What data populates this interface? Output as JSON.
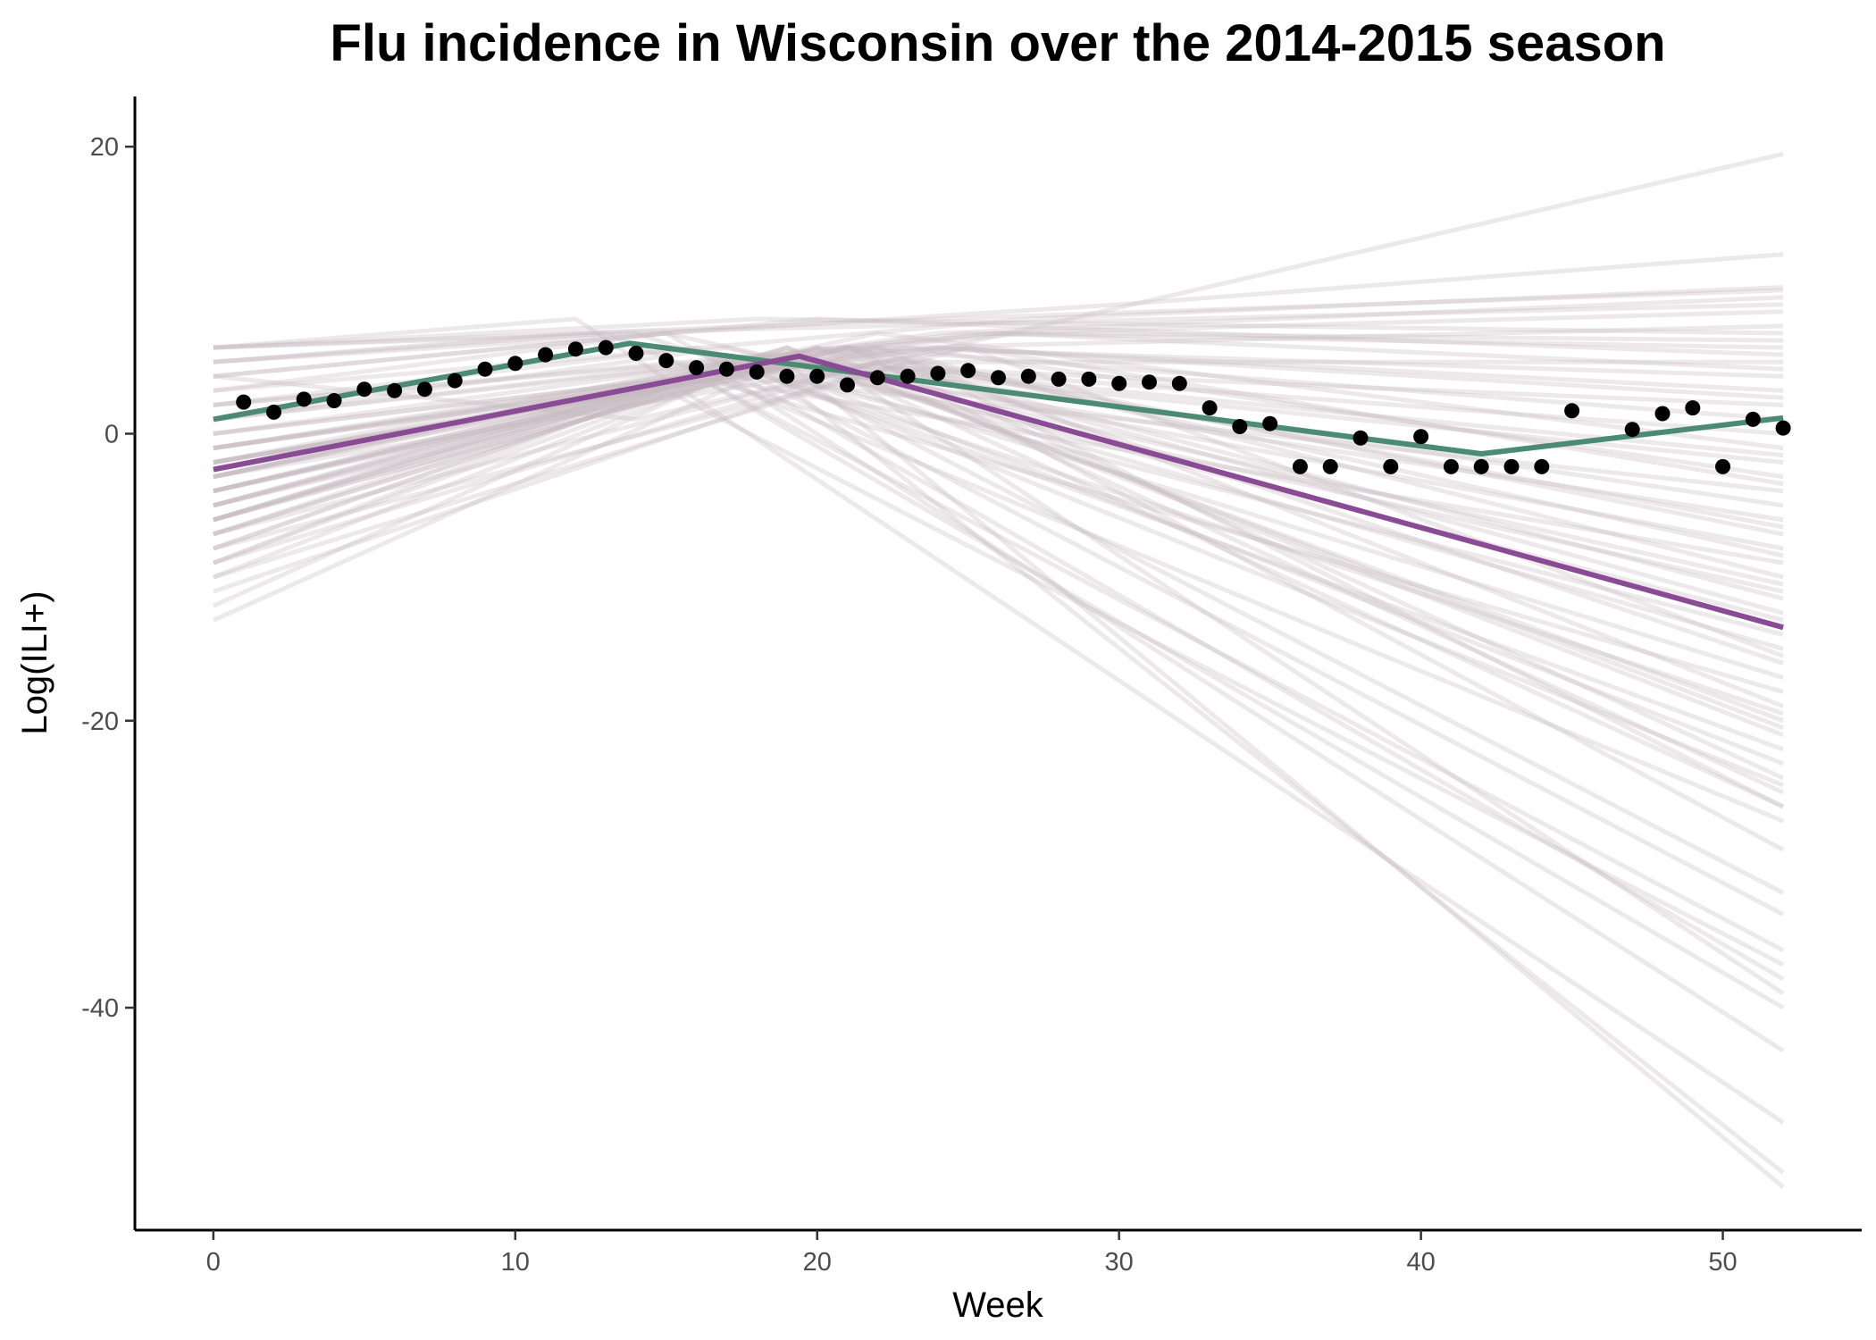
{
  "chart_data": {
    "type": "line",
    "title": "Flu incidence in Wisconsin over the 2014-2015 season",
    "xlabel": "Week",
    "ylabel": "Log(ILI+)",
    "xlim": [
      -2.6,
      54.6
    ],
    "ylim": [
      -55.5,
      23.5
    ],
    "x_ticks": [
      0,
      10,
      20,
      30,
      40,
      50
    ],
    "y_ticks": [
      -40,
      -20,
      0,
      20
    ],
    "grid": false,
    "legend": "none",
    "colors": {
      "observed": "#000000",
      "fit_green": "#4b8b74",
      "fit_purple": "#8a4b95",
      "draws": "#c8bcc0"
    },
    "observed_points": {
      "x": [
        1,
        2,
        3,
        4,
        5,
        6,
        7,
        8,
        9,
        10,
        11,
        12,
        13,
        14,
        15,
        16,
        17,
        18,
        19,
        20,
        21,
        22,
        23,
        24,
        25,
        26,
        27,
        28,
        29,
        30,
        31,
        32,
        33,
        34,
        35,
        36,
        37,
        38,
        39,
        40,
        41,
        42,
        43,
        44,
        45,
        47,
        48,
        49,
        50,
        51,
        52
      ],
      "y": [
        2.2,
        1.5,
        2.4,
        2.3,
        3.1,
        3.0,
        3.1,
        3.7,
        4.5,
        4.9,
        5.5,
        5.9,
        6.0,
        5.6,
        5.1,
        4.6,
        4.5,
        4.3,
        4.0,
        4.0,
        3.4,
        3.9,
        4.0,
        4.2,
        4.4,
        3.9,
        4.0,
        3.8,
        3.8,
        3.5,
        3.6,
        3.5,
        1.8,
        0.5,
        0.7,
        -2.3,
        -2.3,
        -0.3,
        -2.3,
        -0.2,
        -2.3,
        -2.3,
        -2.3,
        -2.3,
        1.6,
        0.3,
        1.4,
        1.8,
        -2.3,
        1.0,
        0.4
      ]
    },
    "series": [
      {
        "x": [
          0,
          13.8,
          42,
          52
        ],
        "y": [
          1.0,
          6.3,
          -1.4,
          1.1
        ]
      },
      {
        "x": [
          0,
          19.4,
          52
        ],
        "y": [
          -2.5,
          5.4,
          -13.5
        ]
      }
    ],
    "background_draws": [
      {
        "x": [
          0,
          19,
          52
        ],
        "y": [
          -13,
          5,
          -52.5
        ]
      },
      {
        "x": [
          0,
          18,
          52
        ],
        "y": [
          -12,
          5,
          -51.5
        ]
      },
      {
        "x": [
          0,
          17,
          52
        ],
        "y": [
          -10,
          4,
          -43
        ]
      },
      {
        "x": [
          0,
          16,
          52
        ],
        "y": [
          -9,
          4,
          -40
        ]
      },
      {
        "x": [
          0,
          15,
          52
        ],
        "y": [
          -8,
          3,
          -37
        ]
      },
      {
        "x": [
          0,
          16,
          52
        ],
        "y": [
          -7,
          4,
          -36
        ]
      },
      {
        "x": [
          0,
          17,
          52
        ],
        "y": [
          -6,
          5,
          -33.5
        ]
      },
      {
        "x": [
          0,
          18,
          52
        ],
        "y": [
          -9,
          5,
          -32
        ]
      },
      {
        "x": [
          0,
          19,
          52
        ],
        "y": [
          -5,
          6,
          -26
        ]
      },
      {
        "x": [
          0,
          20,
          52
        ],
        "y": [
          -7,
          6,
          -25
        ]
      },
      {
        "x": [
          0,
          21,
          52
        ],
        "y": [
          -4,
          6,
          -24
        ]
      },
      {
        "x": [
          0,
          18,
          52
        ],
        "y": [
          -6,
          5,
          -23
        ]
      },
      {
        "x": [
          0,
          17,
          52
        ],
        "y": [
          -3,
          5,
          -22
        ]
      },
      {
        "x": [
          0,
          19,
          52
        ],
        "y": [
          -8,
          6,
          -21
        ]
      },
      {
        "x": [
          0,
          20,
          52
        ],
        "y": [
          -2,
          5,
          -20
        ]
      },
      {
        "x": [
          0,
          22,
          52
        ],
        "y": [
          -5,
          6,
          -19
        ]
      },
      {
        "x": [
          0,
          16,
          52
        ],
        "y": [
          -4,
          4,
          -18
        ]
      },
      {
        "x": [
          0,
          18,
          52
        ],
        "y": [
          -1,
          5,
          -17
        ]
      },
      {
        "x": [
          0,
          21,
          52
        ],
        "y": [
          -6,
          6,
          -16
        ]
      },
      {
        "x": [
          0,
          19,
          52
        ],
        "y": [
          -3,
          5,
          -15
        ]
      },
      {
        "x": [
          0,
          17,
          52
        ],
        "y": [
          -2,
          5,
          -14
        ]
      },
      {
        "x": [
          0,
          20,
          52
        ],
        "y": [
          -7,
          6,
          -12.5
        ]
      },
      {
        "x": [
          0,
          18,
          52
        ],
        "y": [
          -4,
          5,
          -11
        ]
      },
      {
        "x": [
          0,
          22,
          52
        ],
        "y": [
          -1,
          6,
          -10
        ]
      },
      {
        "x": [
          0,
          16,
          52
        ],
        "y": [
          -5,
          4,
          -9
        ]
      },
      {
        "x": [
          0,
          19,
          52
        ],
        "y": [
          -2,
          5,
          -8
        ]
      },
      {
        "x": [
          0,
          21,
          52
        ],
        "y": [
          -6,
          6,
          -7
        ]
      },
      {
        "x": [
          0,
          18,
          52
        ],
        "y": [
          -3,
          5,
          -6
        ]
      },
      {
        "x": [
          0,
          20,
          52
        ],
        "y": [
          0,
          5,
          -5
        ]
      },
      {
        "x": [
          0,
          17,
          52
        ],
        "y": [
          -4,
          4,
          -4
        ]
      },
      {
        "x": [
          0,
          23,
          52
        ],
        "y": [
          -2,
          6,
          -3
        ]
      },
      {
        "x": [
          0,
          19,
          52
        ],
        "y": [
          -5,
          5,
          -2
        ]
      },
      {
        "x": [
          0,
          20,
          52
        ],
        "y": [
          -1,
          5,
          0
        ]
      },
      {
        "x": [
          0,
          21,
          52
        ],
        "y": [
          -3,
          6,
          1
        ]
      },
      {
        "x": [
          0,
          18,
          52
        ],
        "y": [
          -6,
          5,
          2
        ]
      },
      {
        "x": [
          0,
          24,
          52
        ],
        "y": [
          0,
          6,
          3
        ]
      },
      {
        "x": [
          0,
          22,
          52
        ],
        "y": [
          -2,
          6,
          4
        ]
      },
      {
        "x": [
          0,
          20,
          52
        ],
        "y": [
          -4,
          5,
          5
        ]
      },
      {
        "x": [
          0,
          25,
          52
        ],
        "y": [
          1,
          7,
          6
        ]
      },
      {
        "x": [
          0,
          23,
          52
        ],
        "y": [
          -1,
          6,
          7.5
        ]
      },
      {
        "x": [
          0,
          26,
          52
        ],
        "y": [
          2,
          7,
          8.5
        ]
      },
      {
        "x": [
          0,
          24,
          52
        ],
        "y": [
          0,
          7,
          9.5
        ]
      },
      {
        "x": [
          0,
          27,
          52
        ],
        "y": [
          3,
          8,
          10.2
        ]
      },
      {
        "x": [
          0,
          30,
          52
        ],
        "y": [
          5,
          9,
          12.5
        ]
      },
      {
        "x": [
          0,
          22,
          52
        ],
        "y": [
          -9,
          5,
          -29
        ]
      },
      {
        "x": [
          0,
          21,
          52
        ],
        "y": [
          -11,
          4,
          -39
        ]
      },
      {
        "x": [
          0,
          14,
          52
        ],
        "y": [
          4,
          1,
          19.5
        ]
      },
      {
        "x": [
          0,
          12,
          52
        ],
        "y": [
          6,
          8,
          -48
        ]
      },
      {
        "x": [
          0,
          15,
          52
        ],
        "y": [
          3,
          7,
          -38
        ]
      },
      {
        "x": [
          0,
          13,
          52
        ],
        "y": [
          5,
          7,
          -27
        ]
      },
      {
        "x": [
          0,
          16,
          52
        ],
        "y": [
          2,
          6,
          -24.5
        ]
      },
      {
        "x": [
          0,
          14,
          52
        ],
        "y": [
          6,
          7,
          -19.5
        ]
      },
      {
        "x": [
          0,
          17,
          52
        ],
        "y": [
          1,
          6,
          -13
        ]
      },
      {
        "x": [
          0,
          15,
          52
        ],
        "y": [
          4,
          7,
          -10.5
        ]
      },
      {
        "x": [
          0,
          12,
          52
        ],
        "y": [
          5,
          7,
          9
        ]
      },
      {
        "x": [
          0,
          18,
          52
        ],
        "y": [
          6,
          8,
          7
        ]
      },
      {
        "x": [
          0,
          20,
          52
        ],
        "y": [
          4,
          8,
          5.5
        ]
      },
      {
        "x": [
          0,
          24,
          52
        ],
        "y": [
          6,
          8,
          10
        ]
      },
      {
        "x": [
          0,
          22,
          52
        ],
        "y": [
          -3,
          7,
          -1
        ]
      },
      {
        "x": [
          0,
          25,
          52
        ],
        "y": [
          -8,
          6,
          -15.5
        ]
      },
      {
        "x": [
          0,
          19,
          52
        ],
        "y": [
          -6,
          6,
          -20.5
        ]
      },
      {
        "x": [
          0,
          23,
          52
        ],
        "y": [
          -10,
          5,
          -26
        ]
      },
      {
        "x": [
          0,
          21,
          52
        ],
        "y": [
          -4,
          6,
          -8.5
        ]
      },
      {
        "x": [
          0,
          20,
          52
        ],
        "y": [
          -5,
          6,
          -6.5
        ]
      },
      {
        "x": [
          0,
          24,
          52
        ],
        "y": [
          -1,
          6,
          2.5
        ]
      },
      {
        "x": [
          0,
          26,
          52
        ],
        "y": [
          1,
          7,
          4.5
        ]
      },
      {
        "x": [
          0,
          22,
          52
        ],
        "y": [
          -7,
          5,
          -11.5
        ]
      },
      {
        "x": [
          0,
          25,
          52
        ],
        "y": [
          -3,
          6,
          -3.5
        ]
      },
      {
        "x": [
          0,
          27,
          52
        ],
        "y": [
          2,
          7,
          6.5
        ]
      },
      {
        "x": [
          0,
          20,
          52
        ],
        "y": [
          -2,
          5,
          -1.5
        ]
      }
    ]
  }
}
